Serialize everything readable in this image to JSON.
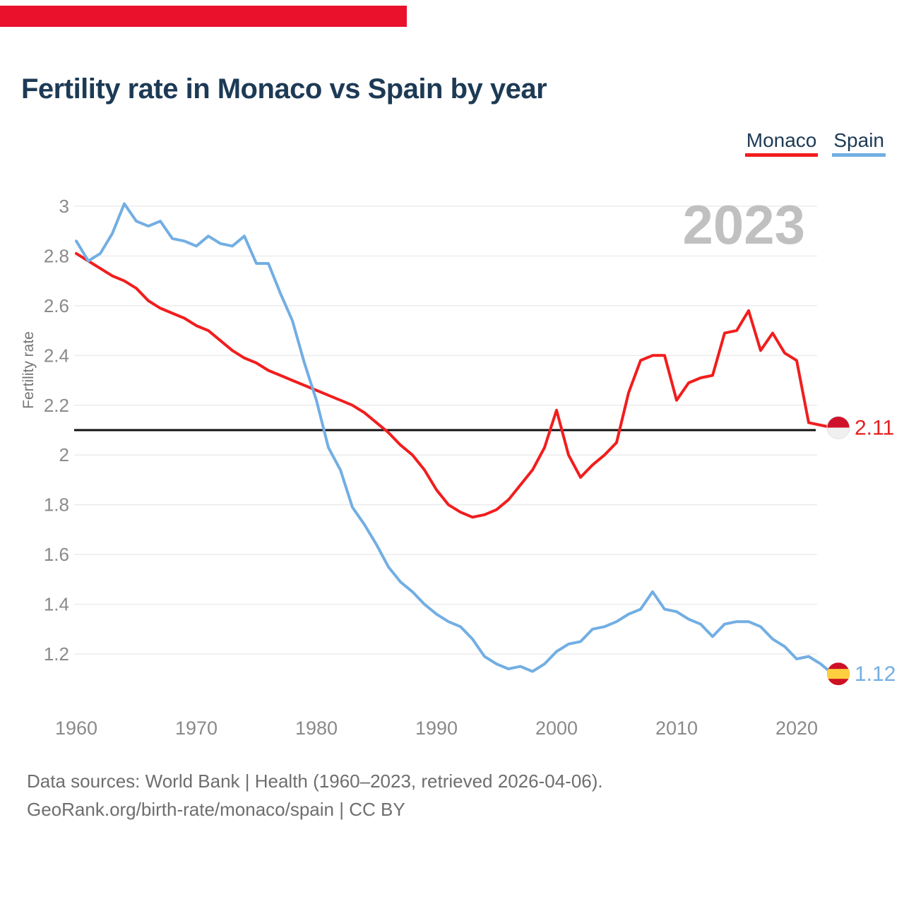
{
  "header": {
    "top_bar_color": "#e9112c",
    "title": "Fertility rate in Monaco vs Spain by year"
  },
  "legend": {
    "items": [
      {
        "label": "Monaco",
        "color": "#f21d1d"
      },
      {
        "label": "Spain",
        "color": "#72aee3"
      }
    ]
  },
  "watermark": "2023",
  "footer": {
    "line1": "Data sources: World Bank | Health (1960–2023, retrieved 2026-04-06).",
    "line2": "GeoRank.org/birth-rate/monaco/spain | CC BY"
  },
  "chart_data": {
    "type": "line",
    "title": "Fertility rate in Monaco vs Spain by year",
    "ylabel": "Fertility rate",
    "xlabel": "",
    "x_start": 1960,
    "x_end": 2023,
    "ylim": [
      1.2,
      3.0
    ],
    "yticks": [
      "3",
      "2.8",
      "2.6",
      "2.4",
      "2.2",
      "2",
      "1.8",
      "1.6",
      "1.4",
      "1.2"
    ],
    "ytick_values": [
      3,
      2.8,
      2.6,
      2.4,
      2.2,
      2,
      1.8,
      1.6,
      1.4,
      1.2
    ],
    "xticks": [
      1960,
      1970,
      1980,
      1990,
      2000,
      2010,
      2020
    ],
    "reference_line_y": 2.1,
    "grid": "horizontal",
    "legend_position": "top-right",
    "watermark_year": "2023",
    "series": [
      {
        "name": "Monaco",
        "color": "#f21d1d",
        "end_label": "2.11",
        "end_value": 2.11,
        "flag": {
          "type": "monaco",
          "red": "#d0112b",
          "white": "#f0f0f0"
        },
        "values": [
          2.81,
          2.78,
          2.75,
          2.72,
          2.7,
          2.67,
          2.62,
          2.59,
          2.57,
          2.55,
          2.52,
          2.5,
          2.46,
          2.42,
          2.39,
          2.37,
          2.34,
          2.32,
          2.3,
          2.28,
          2.26,
          2.24,
          2.22,
          2.2,
          2.17,
          2.13,
          2.09,
          2.04,
          2.0,
          1.94,
          1.86,
          1.8,
          1.77,
          1.75,
          1.76,
          1.78,
          1.82,
          1.88,
          1.94,
          2.03,
          2.18,
          2.0,
          1.91,
          1.96,
          2.0,
          2.05,
          2.25,
          2.38,
          2.4,
          2.4,
          2.22,
          2.29,
          2.31,
          2.32,
          2.49,
          2.5,
          2.58,
          2.42,
          2.49,
          2.41,
          2.38,
          2.13,
          2.12,
          2.11
        ]
      },
      {
        "name": "Spain",
        "color": "#72aee3",
        "end_label": "1.12",
        "end_value": 1.12,
        "flag": {
          "type": "spain",
          "red": "#cd1125",
          "yellow": "#ffcf3f"
        },
        "values": [
          2.86,
          2.78,
          2.81,
          2.89,
          3.01,
          2.94,
          2.92,
          2.94,
          2.87,
          2.86,
          2.84,
          2.88,
          2.85,
          2.84,
          2.88,
          2.77,
          2.77,
          2.65,
          2.54,
          2.37,
          2.22,
          2.03,
          1.94,
          1.79,
          1.72,
          1.64,
          1.55,
          1.49,
          1.45,
          1.4,
          1.36,
          1.33,
          1.31,
          1.26,
          1.19,
          1.16,
          1.14,
          1.15,
          1.13,
          1.16,
          1.21,
          1.24,
          1.25,
          1.3,
          1.31,
          1.33,
          1.36,
          1.38,
          1.45,
          1.38,
          1.37,
          1.34,
          1.32,
          1.27,
          1.32,
          1.33,
          1.33,
          1.31,
          1.26,
          1.23,
          1.18,
          1.19,
          1.16,
          1.12
        ]
      }
    ]
  }
}
